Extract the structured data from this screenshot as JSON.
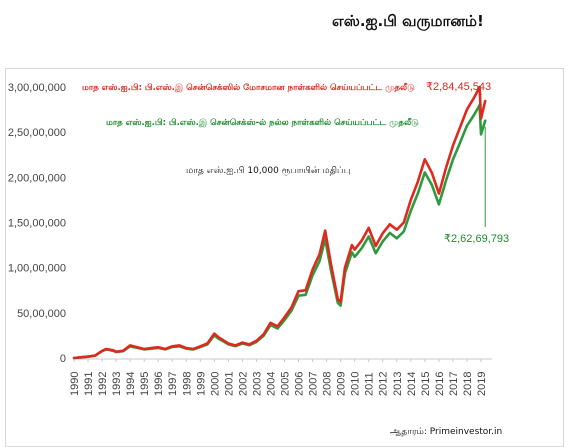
{
  "headline": "எஸ்.ஐ.பி வருமானம்!",
  "source": "ஆதாரம்: Primeinvestor.in",
  "chart_data": {
    "type": "line",
    "annotation": "மாத எஸ்.ஐ.பி 10,000 ரூபாயின் மதிப்பு",
    "y_tick_labels": [
      "0",
      "50,00,000",
      "1,00,00,000",
      "1,50,00,000",
      "2,00,00,000",
      "2,50,00,000",
      "3,00,00,000"
    ],
    "y_ticks": [
      0,
      5000000,
      10000000,
      15000000,
      20000000,
      25000000,
      30000000
    ],
    "ylim": [
      0,
      30000000
    ],
    "xlim": [
      1990,
      2019.5
    ],
    "x_tick_labels": [
      "1990",
      "1991",
      "1992",
      "1993",
      "1994",
      "1995",
      "1996",
      "1997",
      "1998",
      "1999",
      "2000",
      "2001",
      "2002",
      "2003",
      "2004",
      "2005",
      "2006",
      "2007",
      "2008",
      "2009",
      "2010",
      "2011",
      "2012",
      "2013",
      "2014",
      "2015",
      "2016",
      "2017",
      "2018",
      "2019"
    ],
    "x_ticks": [
      1990,
      1991,
      1992,
      1993,
      1994,
      1995,
      1996,
      1997,
      1998,
      1999,
      2000,
      2001,
      2002,
      2003,
      2004,
      2005,
      2006,
      2007,
      2008,
      2009,
      2010,
      2011,
      2012,
      2013,
      2014,
      2015,
      2016,
      2017,
      2018,
      2019
    ],
    "series": [
      {
        "name": "மாத எஸ்.ஐ.பி: பி.எஸ்.இ சென்செக்ஸில் மோசமான நாள்களில் செய்யப்பட்ட முதலீடு",
        "color": "#e0291e",
        "end_label": "₹2,84,45,543",
        "x": [
          1990,
          1990.5,
          1991,
          1991.5,
          1992,
          1992.3,
          1992.8,
          1993,
          1993.5,
          1994,
          1994.5,
          1995,
          1995.5,
          1996,
          1996.5,
          1997,
          1997.5,
          1998,
          1998.5,
          1999,
          1999.5,
          2000,
          2000.3,
          2000.8,
          2001,
          2001.5,
          2002,
          2002.5,
          2003,
          2003.5,
          2004,
          2004.5,
          2005,
          2005.5,
          2006,
          2006.5,
          2007,
          2007.5,
          2007.9,
          2008.3,
          2008.8,
          2009,
          2009.3,
          2009.8,
          2010,
          2010.5,
          2011,
          2011.5,
          2012,
          2012.5,
          2013,
          2013.5,
          2014,
          2014.5,
          2015,
          2015.5,
          2016,
          2016.5,
          2017,
          2017.5,
          2018,
          2018.5,
          2018.9,
          2019,
          2019.3
        ],
        "values": [
          0,
          80000,
          150000,
          280000,
          800000,
          1000000,
          850000,
          700000,
          800000,
          1400000,
          1200000,
          1000000,
          1100000,
          1200000,
          1000000,
          1300000,
          1400000,
          1100000,
          1000000,
          1300000,
          1600000,
          2700000,
          2300000,
          1800000,
          1600000,
          1400000,
          1700000,
          1500000,
          1900000,
          2600000,
          3900000,
          3500000,
          4500000,
          5600000,
          7400000,
          7500000,
          9800000,
          11500000,
          14100000,
          10500000,
          6500000,
          6200000,
          10000000,
          12500000,
          12000000,
          13000000,
          14400000,
          12400000,
          13800000,
          14800000,
          14200000,
          15000000,
          17500000,
          19500000,
          22000000,
          20500000,
          18200000,
          21000000,
          23500000,
          25500000,
          27500000,
          28800000,
          30000000,
          26500000,
          28445543
        ]
      },
      {
        "name": "மாத எஸ்.ஐ.பி: பி.எஸ்.இ சென்செக்ஸ்-ல் நல்ல நாள்களில் செய்யப்பட்ட முதலீடு",
        "color": "#2e9a3e",
        "end_label": "₹2,62,69,793",
        "x": [
          1990,
          1990.5,
          1991,
          1991.5,
          1992,
          1992.3,
          1992.8,
          1993,
          1993.5,
          1994,
          1994.5,
          1995,
          1995.5,
          1996,
          1996.5,
          1997,
          1997.5,
          1998,
          1998.5,
          1999,
          1999.5,
          2000,
          2000.3,
          2000.8,
          2001,
          2001.5,
          2002,
          2002.5,
          2003,
          2003.5,
          2004,
          2004.5,
          2005,
          2005.5,
          2006,
          2006.5,
          2007,
          2007.5,
          2007.9,
          2008.3,
          2008.8,
          2009,
          2009.3,
          2009.8,
          2010,
          2010.5,
          2011,
          2011.5,
          2012,
          2012.5,
          2013,
          2013.5,
          2014,
          2014.5,
          2015,
          2015.5,
          2016,
          2016.5,
          2017,
          2017.5,
          2018,
          2018.5,
          2018.9,
          2019,
          2019.3
        ],
        "values": [
          0,
          75000,
          140000,
          260000,
          750000,
          950000,
          800000,
          660000,
          750000,
          1300000,
          1120000,
          950000,
          1030000,
          1120000,
          950000,
          1220000,
          1300000,
          1030000,
          950000,
          1220000,
          1500000,
          2500000,
          2150000,
          1700000,
          1500000,
          1320000,
          1600000,
          1420000,
          1780000,
          2450000,
          3650000,
          3280000,
          4200000,
          5250000,
          6900000,
          7000000,
          9150000,
          10750000,
          13200000,
          9800000,
          6100000,
          5800000,
          9350000,
          11700000,
          11200000,
          12150000,
          13450000,
          11600000,
          12900000,
          13850000,
          13250000,
          14000000,
          16300000,
          18200000,
          20550000,
          19150000,
          17000000,
          19600000,
          21950000,
          23800000,
          25700000,
          26900000,
          28000000,
          24750000,
          26269793
        ]
      }
    ]
  }
}
